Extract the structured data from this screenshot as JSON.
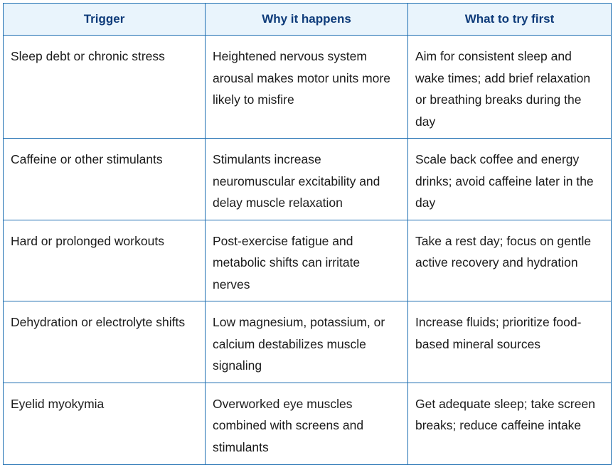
{
  "headers": [
    "Trigger",
    "Why it happens",
    "What to try first"
  ],
  "rows": [
    [
      "Sleep debt or chronic stress",
      "Heightened nervous system arousal makes motor units more likely to misfire",
      "Aim for consistent sleep and wake times; add brief relaxation or breathing breaks during the day"
    ],
    [
      "Caffeine or other stimulants",
      "Stimulants increase neuromuscular excitability and delay muscle relaxation",
      "Scale back coffee and energy drinks; avoid caffeine later in the day"
    ],
    [
      "Hard or prolonged workouts",
      "Post-exercise fatigue and metabolic shifts can irritate nerves",
      "Take a rest day; focus on gentle active recovery and hydration"
    ],
    [
      "Dehydration or electrolyte shifts",
      "Low magnesium, potassium, or calcium destabilizes muscle signaling",
      "Increase fluids; prioritize food-based mineral sources"
    ],
    [
      "Eyelid myokymia",
      "Overworked eye muscles combined with screens and stimulants",
      "Get adequate sleep; take screen breaks; reduce caffeine intake"
    ]
  ]
}
